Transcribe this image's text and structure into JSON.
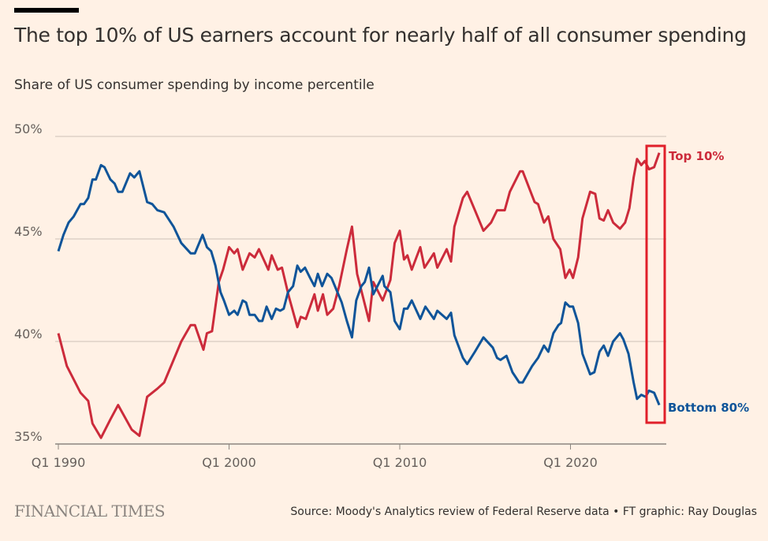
{
  "header": {
    "title": "The top 10% of US earners account for nearly half of all consumer spending",
    "subtitle": "Share of US consumer spending by income percentile"
  },
  "footer": {
    "logo": "FINANCIAL TIMES",
    "source": "Source: Moody's Analytics review of Federal Reserve data • FT graphic: Ray Douglas"
  },
  "colors": {
    "background": "#fff1e5",
    "top10": "#cc2b3b",
    "bottom80": "#0f5499",
    "highlight": "#e0202a"
  },
  "chart_data": {
    "type": "line",
    "title": "The top 10% of US earners account for nearly half of all consumer spending",
    "subtitle": "Share of US consumer spending by income percentile",
    "xlabel": "",
    "ylabel": "",
    "x_ticks": [
      "Q1 1990",
      "Q1 2000",
      "Q1 2010",
      "Q1 2020"
    ],
    "y_ticks": [
      "35%",
      "40%",
      "45%",
      "50%"
    ],
    "ylim": [
      35,
      50
    ],
    "xlim": [
      1990,
      2025.25
    ],
    "grid": "horizontal",
    "legend": "inline labels at line ends (right)",
    "annotation": "red box highlighting the most recent quarters",
    "series": [
      {
        "name": "Top 10%",
        "color": "#cc2b3b",
        "points": [
          [
            1990.0,
            40.4
          ],
          [
            1990.5,
            38.8
          ],
          [
            1991.3,
            37.5
          ],
          [
            1991.75,
            37.1
          ],
          [
            1992.0,
            36.0
          ],
          [
            1992.5,
            35.3
          ],
          [
            1993.05,
            36.2
          ],
          [
            1993.5,
            36.9
          ],
          [
            1994.3,
            35.7
          ],
          [
            1994.75,
            35.4
          ],
          [
            1995.2,
            37.3
          ],
          [
            1995.8,
            37.7
          ],
          [
            1996.2,
            38.0
          ],
          [
            1997.2,
            40.0
          ],
          [
            1997.75,
            40.8
          ],
          [
            1998.0,
            40.8
          ],
          [
            1998.5,
            39.6
          ],
          [
            1998.7,
            40.4
          ],
          [
            1999.0,
            40.5
          ],
          [
            1999.4,
            42.9
          ],
          [
            1999.65,
            43.5
          ],
          [
            2000.0,
            44.6
          ],
          [
            2000.3,
            44.3
          ],
          [
            2000.5,
            44.5
          ],
          [
            2000.8,
            43.5
          ],
          [
            2001.2,
            44.3
          ],
          [
            2001.5,
            44.1
          ],
          [
            2001.75,
            44.5
          ],
          [
            2002.3,
            43.5
          ],
          [
            2002.5,
            44.2
          ],
          [
            2002.85,
            43.5
          ],
          [
            2003.1,
            43.6
          ],
          [
            2003.5,
            42.2
          ],
          [
            2004.0,
            40.7
          ],
          [
            2004.2,
            41.2
          ],
          [
            2004.5,
            41.1
          ],
          [
            2005.0,
            42.3
          ],
          [
            2005.2,
            41.5
          ],
          [
            2005.5,
            42.3
          ],
          [
            2005.75,
            41.3
          ],
          [
            2006.1,
            41.6
          ],
          [
            2006.45,
            42.7
          ],
          [
            2006.9,
            44.5
          ],
          [
            2007.2,
            45.6
          ],
          [
            2007.5,
            43.3
          ],
          [
            2008.2,
            41.0
          ],
          [
            2008.45,
            42.9
          ],
          [
            2009.0,
            42.0
          ],
          [
            2009.45,
            43.0
          ],
          [
            2009.7,
            44.8
          ],
          [
            2010.0,
            45.4
          ],
          [
            2010.25,
            44.0
          ],
          [
            2010.45,
            44.2
          ],
          [
            2010.7,
            43.5
          ],
          [
            2011.2,
            44.6
          ],
          [
            2011.45,
            43.6
          ],
          [
            2012.0,
            44.3
          ],
          [
            2012.2,
            43.6
          ],
          [
            2012.75,
            44.5
          ],
          [
            2013.0,
            43.9
          ],
          [
            2013.2,
            45.6
          ],
          [
            2013.7,
            47.0
          ],
          [
            2013.95,
            47.3
          ],
          [
            2014.4,
            46.4
          ],
          [
            2014.9,
            45.4
          ],
          [
            2015.35,
            45.8
          ],
          [
            2015.7,
            46.4
          ],
          [
            2016.15,
            46.4
          ],
          [
            2016.45,
            47.3
          ],
          [
            2017.05,
            48.3
          ],
          [
            2017.2,
            48.3
          ],
          [
            2017.9,
            46.8
          ],
          [
            2018.1,
            46.7
          ],
          [
            2018.45,
            45.8
          ],
          [
            2018.7,
            46.1
          ],
          [
            2019.0,
            45.0
          ],
          [
            2019.4,
            44.5
          ],
          [
            2019.7,
            43.1
          ],
          [
            2019.95,
            43.5
          ],
          [
            2020.15,
            43.1
          ],
          [
            2020.45,
            44.1
          ],
          [
            2020.7,
            46.0
          ],
          [
            2021.15,
            47.3
          ],
          [
            2021.45,
            47.2
          ],
          [
            2021.7,
            46.0
          ],
          [
            2021.95,
            45.9
          ],
          [
            2022.2,
            46.4
          ],
          [
            2022.5,
            45.8
          ],
          [
            2022.9,
            45.5
          ],
          [
            2023.2,
            45.8
          ],
          [
            2023.45,
            46.5
          ],
          [
            2023.7,
            48.0
          ],
          [
            2023.9,
            48.9
          ],
          [
            2024.15,
            48.6
          ],
          [
            2024.35,
            48.8
          ],
          [
            2024.6,
            48.4
          ],
          [
            2024.9,
            48.5
          ],
          [
            2025.2,
            49.2
          ]
        ]
      },
      {
        "name": "Bottom 80%",
        "color": "#0f5499",
        "points": [
          [
            1990.0,
            44.4
          ],
          [
            1990.3,
            45.2
          ],
          [
            1990.6,
            45.8
          ],
          [
            1990.9,
            46.1
          ],
          [
            1991.3,
            46.7
          ],
          [
            1991.5,
            46.7
          ],
          [
            1991.75,
            47.0
          ],
          [
            1992.0,
            47.9
          ],
          [
            1992.2,
            47.9
          ],
          [
            1992.5,
            48.6
          ],
          [
            1992.7,
            48.5
          ],
          [
            1993.05,
            47.9
          ],
          [
            1993.3,
            47.7
          ],
          [
            1993.5,
            47.3
          ],
          [
            1993.75,
            47.3
          ],
          [
            1994.2,
            48.2
          ],
          [
            1994.45,
            48.0
          ],
          [
            1994.75,
            48.3
          ],
          [
            1995.2,
            46.8
          ],
          [
            1995.5,
            46.7
          ],
          [
            1995.8,
            46.4
          ],
          [
            1996.2,
            46.3
          ],
          [
            1996.75,
            45.6
          ],
          [
            1997.2,
            44.8
          ],
          [
            1997.75,
            44.3
          ],
          [
            1998.0,
            44.3
          ],
          [
            1998.45,
            45.2
          ],
          [
            1998.7,
            44.6
          ],
          [
            1998.95,
            44.4
          ],
          [
            1999.2,
            43.7
          ],
          [
            1999.5,
            42.4
          ],
          [
            1999.7,
            42.0
          ],
          [
            2000.0,
            41.3
          ],
          [
            2000.3,
            41.5
          ],
          [
            2000.5,
            41.3
          ],
          [
            2000.8,
            42.0
          ],
          [
            2001.0,
            41.9
          ],
          [
            2001.2,
            41.3
          ],
          [
            2001.5,
            41.3
          ],
          [
            2001.75,
            41.0
          ],
          [
            2001.95,
            41.0
          ],
          [
            2002.2,
            41.7
          ],
          [
            2002.5,
            41.1
          ],
          [
            2002.75,
            41.6
          ],
          [
            2003.0,
            41.5
          ],
          [
            2003.2,
            41.6
          ],
          [
            2003.45,
            42.4
          ],
          [
            2003.75,
            42.7
          ],
          [
            2004.0,
            43.7
          ],
          [
            2004.2,
            43.4
          ],
          [
            2004.45,
            43.6
          ],
          [
            2004.75,
            43.1
          ],
          [
            2005.0,
            42.7
          ],
          [
            2005.2,
            43.3
          ],
          [
            2005.45,
            42.7
          ],
          [
            2005.75,
            43.3
          ],
          [
            2006.0,
            43.1
          ],
          [
            2006.3,
            42.5
          ],
          [
            2006.6,
            41.9
          ],
          [
            2006.9,
            41.0
          ],
          [
            2007.2,
            40.2
          ],
          [
            2007.45,
            42.0
          ],
          [
            2007.75,
            42.7
          ],
          [
            2007.95,
            42.9
          ],
          [
            2008.2,
            43.6
          ],
          [
            2008.45,
            42.3
          ],
          [
            2009.0,
            43.2
          ],
          [
            2009.1,
            42.7
          ],
          [
            2009.45,
            42.4
          ],
          [
            2009.7,
            41.0
          ],
          [
            2010.0,
            40.6
          ],
          [
            2010.25,
            41.6
          ],
          [
            2010.45,
            41.6
          ],
          [
            2010.7,
            42.0
          ],
          [
            2011.2,
            41.1
          ],
          [
            2011.5,
            41.7
          ],
          [
            2012.0,
            41.1
          ],
          [
            2012.2,
            41.5
          ],
          [
            2012.75,
            41.1
          ],
          [
            2013.0,
            41.4
          ],
          [
            2013.2,
            40.3
          ],
          [
            2013.7,
            39.2
          ],
          [
            2013.95,
            38.9
          ],
          [
            2014.4,
            39.5
          ],
          [
            2014.9,
            40.2
          ],
          [
            2015.45,
            39.7
          ],
          [
            2015.7,
            39.2
          ],
          [
            2015.9,
            39.1
          ],
          [
            2016.25,
            39.3
          ],
          [
            2016.6,
            38.5
          ],
          [
            2017.0,
            38.0
          ],
          [
            2017.2,
            38.0
          ],
          [
            2017.75,
            38.8
          ],
          [
            2018.1,
            39.2
          ],
          [
            2018.45,
            39.8
          ],
          [
            2018.7,
            39.5
          ],
          [
            2019.0,
            40.4
          ],
          [
            2019.3,
            40.8
          ],
          [
            2019.45,
            40.9
          ],
          [
            2019.7,
            41.9
          ],
          [
            2019.95,
            41.7
          ],
          [
            2020.15,
            41.7
          ],
          [
            2020.45,
            40.9
          ],
          [
            2020.7,
            39.4
          ],
          [
            2021.15,
            38.4
          ],
          [
            2021.4,
            38.5
          ],
          [
            2021.7,
            39.5
          ],
          [
            2021.95,
            39.8
          ],
          [
            2022.2,
            39.3
          ],
          [
            2022.5,
            40.0
          ],
          [
            2022.9,
            40.4
          ],
          [
            2023.1,
            40.1
          ],
          [
            2023.4,
            39.4
          ],
          [
            2023.7,
            38.0
          ],
          [
            2023.9,
            37.2
          ],
          [
            2024.15,
            37.4
          ],
          [
            2024.4,
            37.3
          ],
          [
            2024.6,
            37.6
          ],
          [
            2024.9,
            37.5
          ],
          [
            2025.2,
            36.9
          ]
        ]
      }
    ]
  }
}
